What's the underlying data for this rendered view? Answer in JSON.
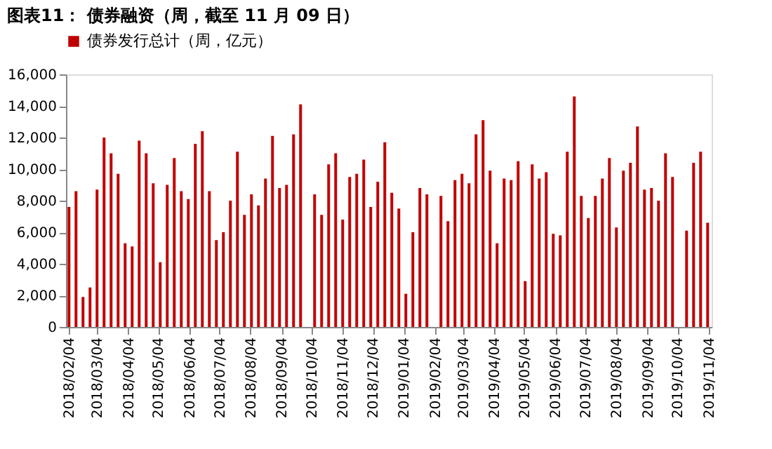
{
  "chart_data": {
    "type": "bar",
    "title": "图表11： 债券融资（周，截至 11 月 09 日）",
    "x": [
      "2018-02-04",
      "2018-02-11",
      "2018-02-18",
      "2018-02-25",
      "2018-03-04",
      "2018-03-11",
      "2018-03-18",
      "2018-03-25",
      "2018-04-01",
      "2018-04-08",
      "2018-04-15",
      "2018-04-22",
      "2018-04-29",
      "2018-05-06",
      "2018-05-13",
      "2018-05-20",
      "2018-05-27",
      "2018-06-03",
      "2018-06-10",
      "2018-06-17",
      "2018-06-24",
      "2018-07-01",
      "2018-07-08",
      "2018-07-15",
      "2018-07-22",
      "2018-07-29",
      "2018-08-05",
      "2018-08-12",
      "2018-08-19",
      "2018-08-26",
      "2018-09-02",
      "2018-09-09",
      "2018-09-16",
      "2018-09-23",
      "2018-09-30",
      "2018-10-07",
      "2018-10-14",
      "2018-10-21",
      "2018-10-28",
      "2018-11-04",
      "2018-11-11",
      "2018-11-18",
      "2018-11-25",
      "2018-12-02",
      "2018-12-09",
      "2018-12-16",
      "2018-12-23",
      "2018-12-30",
      "2019-01-06",
      "2019-01-13",
      "2019-01-20",
      "2019-01-27",
      "2019-02-03",
      "2019-02-10",
      "2019-02-17",
      "2019-02-24",
      "2019-03-03",
      "2019-03-10",
      "2019-03-17",
      "2019-03-24",
      "2019-03-31",
      "2019-04-07",
      "2019-04-14",
      "2019-04-21",
      "2019-04-28",
      "2019-05-05",
      "2019-05-12",
      "2019-05-19",
      "2019-05-26",
      "2019-06-02",
      "2019-06-09",
      "2019-06-16",
      "2019-06-23",
      "2019-06-30",
      "2019-07-07",
      "2019-07-14",
      "2019-07-21",
      "2019-07-28",
      "2019-08-04",
      "2019-08-11",
      "2019-08-18",
      "2019-08-25",
      "2019-09-01",
      "2019-09-08",
      "2019-09-15",
      "2019-09-22",
      "2019-09-29",
      "2019-10-06",
      "2019-10-13",
      "2019-10-20",
      "2019-10-27",
      "2019-11-03"
    ],
    "series": [
      {
        "name": "债券发行总计（周，亿元）",
        "color": "#c00000",
        "values": [
          7600,
          8600,
          1900,
          2500,
          8700,
          12000,
          11000,
          9700,
          5300,
          5100,
          11800,
          11000,
          9100,
          4100,
          9000,
          10700,
          8600,
          8100,
          11600,
          12400,
          8600,
          5500,
          6000,
          8000,
          11100,
          7100,
          8400,
          7700,
          9400,
          12100,
          8800,
          9000,
          12200,
          14100,
          null,
          8400,
          7100,
          10300,
          11000,
          6800,
          9500,
          9700,
          10600,
          7600,
          9200,
          11700,
          8500,
          7500,
          2100,
          6000,
          8800,
          8400,
          null,
          8300,
          6700,
          9300,
          9700,
          9100,
          12200,
          13100,
          9900,
          5300,
          9400,
          9300,
          10500,
          2900,
          10300,
          9400,
          9800,
          5900,
          5800,
          11100,
          14600,
          8300,
          6900,
          8300,
          9400,
          10700,
          6300,
          9900,
          10400,
          12700,
          8700,
          8800,
          8000,
          11000,
          9500,
          null,
          6100,
          10400,
          11100,
          6600
        ]
      }
    ],
    "xlim": [
      "2018-02-01",
      "2019-11-07"
    ],
    "xticks": [
      {
        "value": "2018-02-04",
        "label": "2018/02/04"
      },
      {
        "value": "2018-03-04",
        "label": "2018/03/04"
      },
      {
        "value": "2018-04-04",
        "label": "2018/04/04"
      },
      {
        "value": "2018-05-04",
        "label": "2018/05/04"
      },
      {
        "value": "2018-06-04",
        "label": "2018/06/04"
      },
      {
        "value": "2018-07-04",
        "label": "2018/07/04"
      },
      {
        "value": "2018-08-04",
        "label": "2018/08/04"
      },
      {
        "value": "2018-09-04",
        "label": "2018/09/04"
      },
      {
        "value": "2018-10-04",
        "label": "2018/10/04"
      },
      {
        "value": "2018-11-04",
        "label": "2018/11/04"
      },
      {
        "value": "2018-12-04",
        "label": "2018/12/04"
      },
      {
        "value": "2019-01-04",
        "label": "2019/01/04"
      },
      {
        "value": "2019-02-04",
        "label": "2019/02/04"
      },
      {
        "value": "2019-03-04",
        "label": "2019/03/04"
      },
      {
        "value": "2019-04-04",
        "label": "2019/04/04"
      },
      {
        "value": "2019-05-04",
        "label": "2019/05/04"
      },
      {
        "value": "2019-06-04",
        "label": "2019/06/04"
      },
      {
        "value": "2019-07-04",
        "label": "2019/07/04"
      },
      {
        "value": "2019-08-04",
        "label": "2019/08/04"
      },
      {
        "value": "2019-09-04",
        "label": "2019/09/04"
      },
      {
        "value": "2019-10-04",
        "label": "2019/10/04"
      },
      {
        "value": "2019-11-04",
        "label": "2019/11/04"
      }
    ],
    "ylim": [
      0,
      16000
    ],
    "yticks": [
      {
        "value": 0,
        "label": "0"
      },
      {
        "value": 2000,
        "label": "2,000"
      },
      {
        "value": 4000,
        "label": "4,000"
      },
      {
        "value": 6000,
        "label": "6,000"
      },
      {
        "value": 8000,
        "label": "8,000"
      },
      {
        "value": 10000,
        "label": "10,000"
      },
      {
        "value": 12000,
        "label": "12,000"
      },
      {
        "value": 14000,
        "label": "14,000"
      },
      {
        "value": 16000,
        "label": "16,000"
      }
    ],
    "grid": false,
    "legend": "top"
  }
}
